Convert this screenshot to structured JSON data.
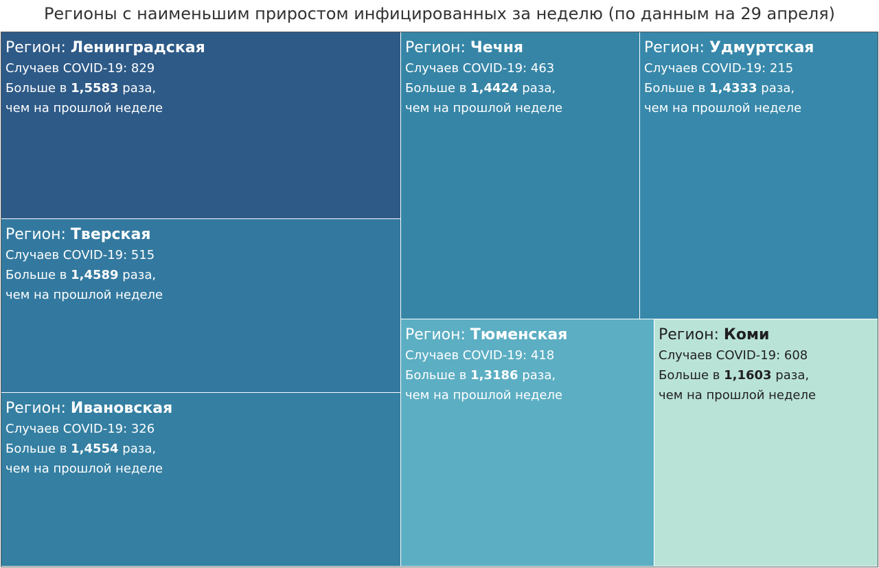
{
  "chart_data": {
    "type": "treemap",
    "title": "Регионы с наименьшим приростом инфицированных за неделю (по данным на 29 апреля)",
    "labels": {
      "region_prefix": "Регион:",
      "cases_prefix": "Случаев COVID-19:",
      "more_prefix": "Больше в",
      "more_suffix": "раза,",
      "last_week": "чем на прошлой неделе"
    },
    "regions": [
      {
        "name": "Ленинградская",
        "cases": "829",
        "ratio": "1,5583",
        "color": "#2e5a87"
      },
      {
        "name": "Тверская",
        "cases": "515",
        "ratio": "1,4589",
        "color": "#33799f"
      },
      {
        "name": "Ивановская",
        "cases": "326",
        "ratio": "1,4554",
        "color": "#347fa2"
      },
      {
        "name": "Чечня",
        "cases": "463",
        "ratio": "1,4424",
        "color": "#3685a6"
      },
      {
        "name": "Удмуртская",
        "cases": "215",
        "ratio": "1,4333",
        "color": "#3788aa"
      },
      {
        "name": "Тюменская",
        "cases": "418",
        "ratio": "1,3186",
        "color": "#5caec3"
      },
      {
        "name": "Коми",
        "cases": "608",
        "ratio": "1,1603",
        "color": "#bae3d8"
      }
    ]
  }
}
